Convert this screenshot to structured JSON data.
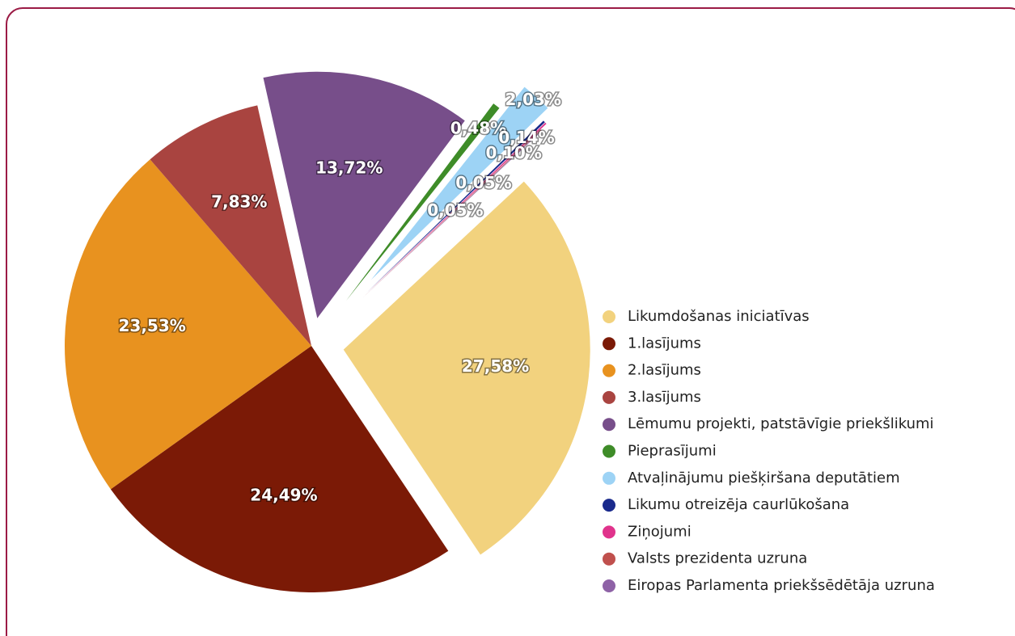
{
  "chart_data": {
    "type": "pie",
    "categories": [
      "Likumdošanas iniciatīvas",
      "1.lasījums",
      "2.lasījums",
      "3.lasījums",
      "Lēmumu projekti, patstāvīgie priekšlikumi",
      "Pieprasījumi",
      "Atvaļinājumu piešķiršana deputātiem",
      "Likumu otreizēja caurlūkošana",
      "Ziņojumi",
      "Valsts prezidenta uzruna",
      "Eiropas Parlamenta priekšsēdētāja uzruna"
    ],
    "values": [
      27.58,
      24.49,
      23.53,
      7.83,
      13.72,
      0.48,
      2.03,
      0.14,
      0.1,
      0.05,
      0.05
    ],
    "value_labels": [
      "27,58%",
      "24,49%",
      "23,53%",
      "7,83%",
      "13,72%",
      "0,48%",
      "2,03%",
      "0,14%",
      "0,10%",
      "0,05%",
      "0,05%"
    ],
    "colors": [
      "#f2d27e",
      "#7b1a06",
      "#e8921f",
      "#a94440",
      "#774e8a",
      "#3e8c28",
      "#9dd3f5",
      "#1a2a8c",
      "#e0338c",
      "#c0504d",
      "#8e62a6"
    ],
    "legend": "right"
  }
}
